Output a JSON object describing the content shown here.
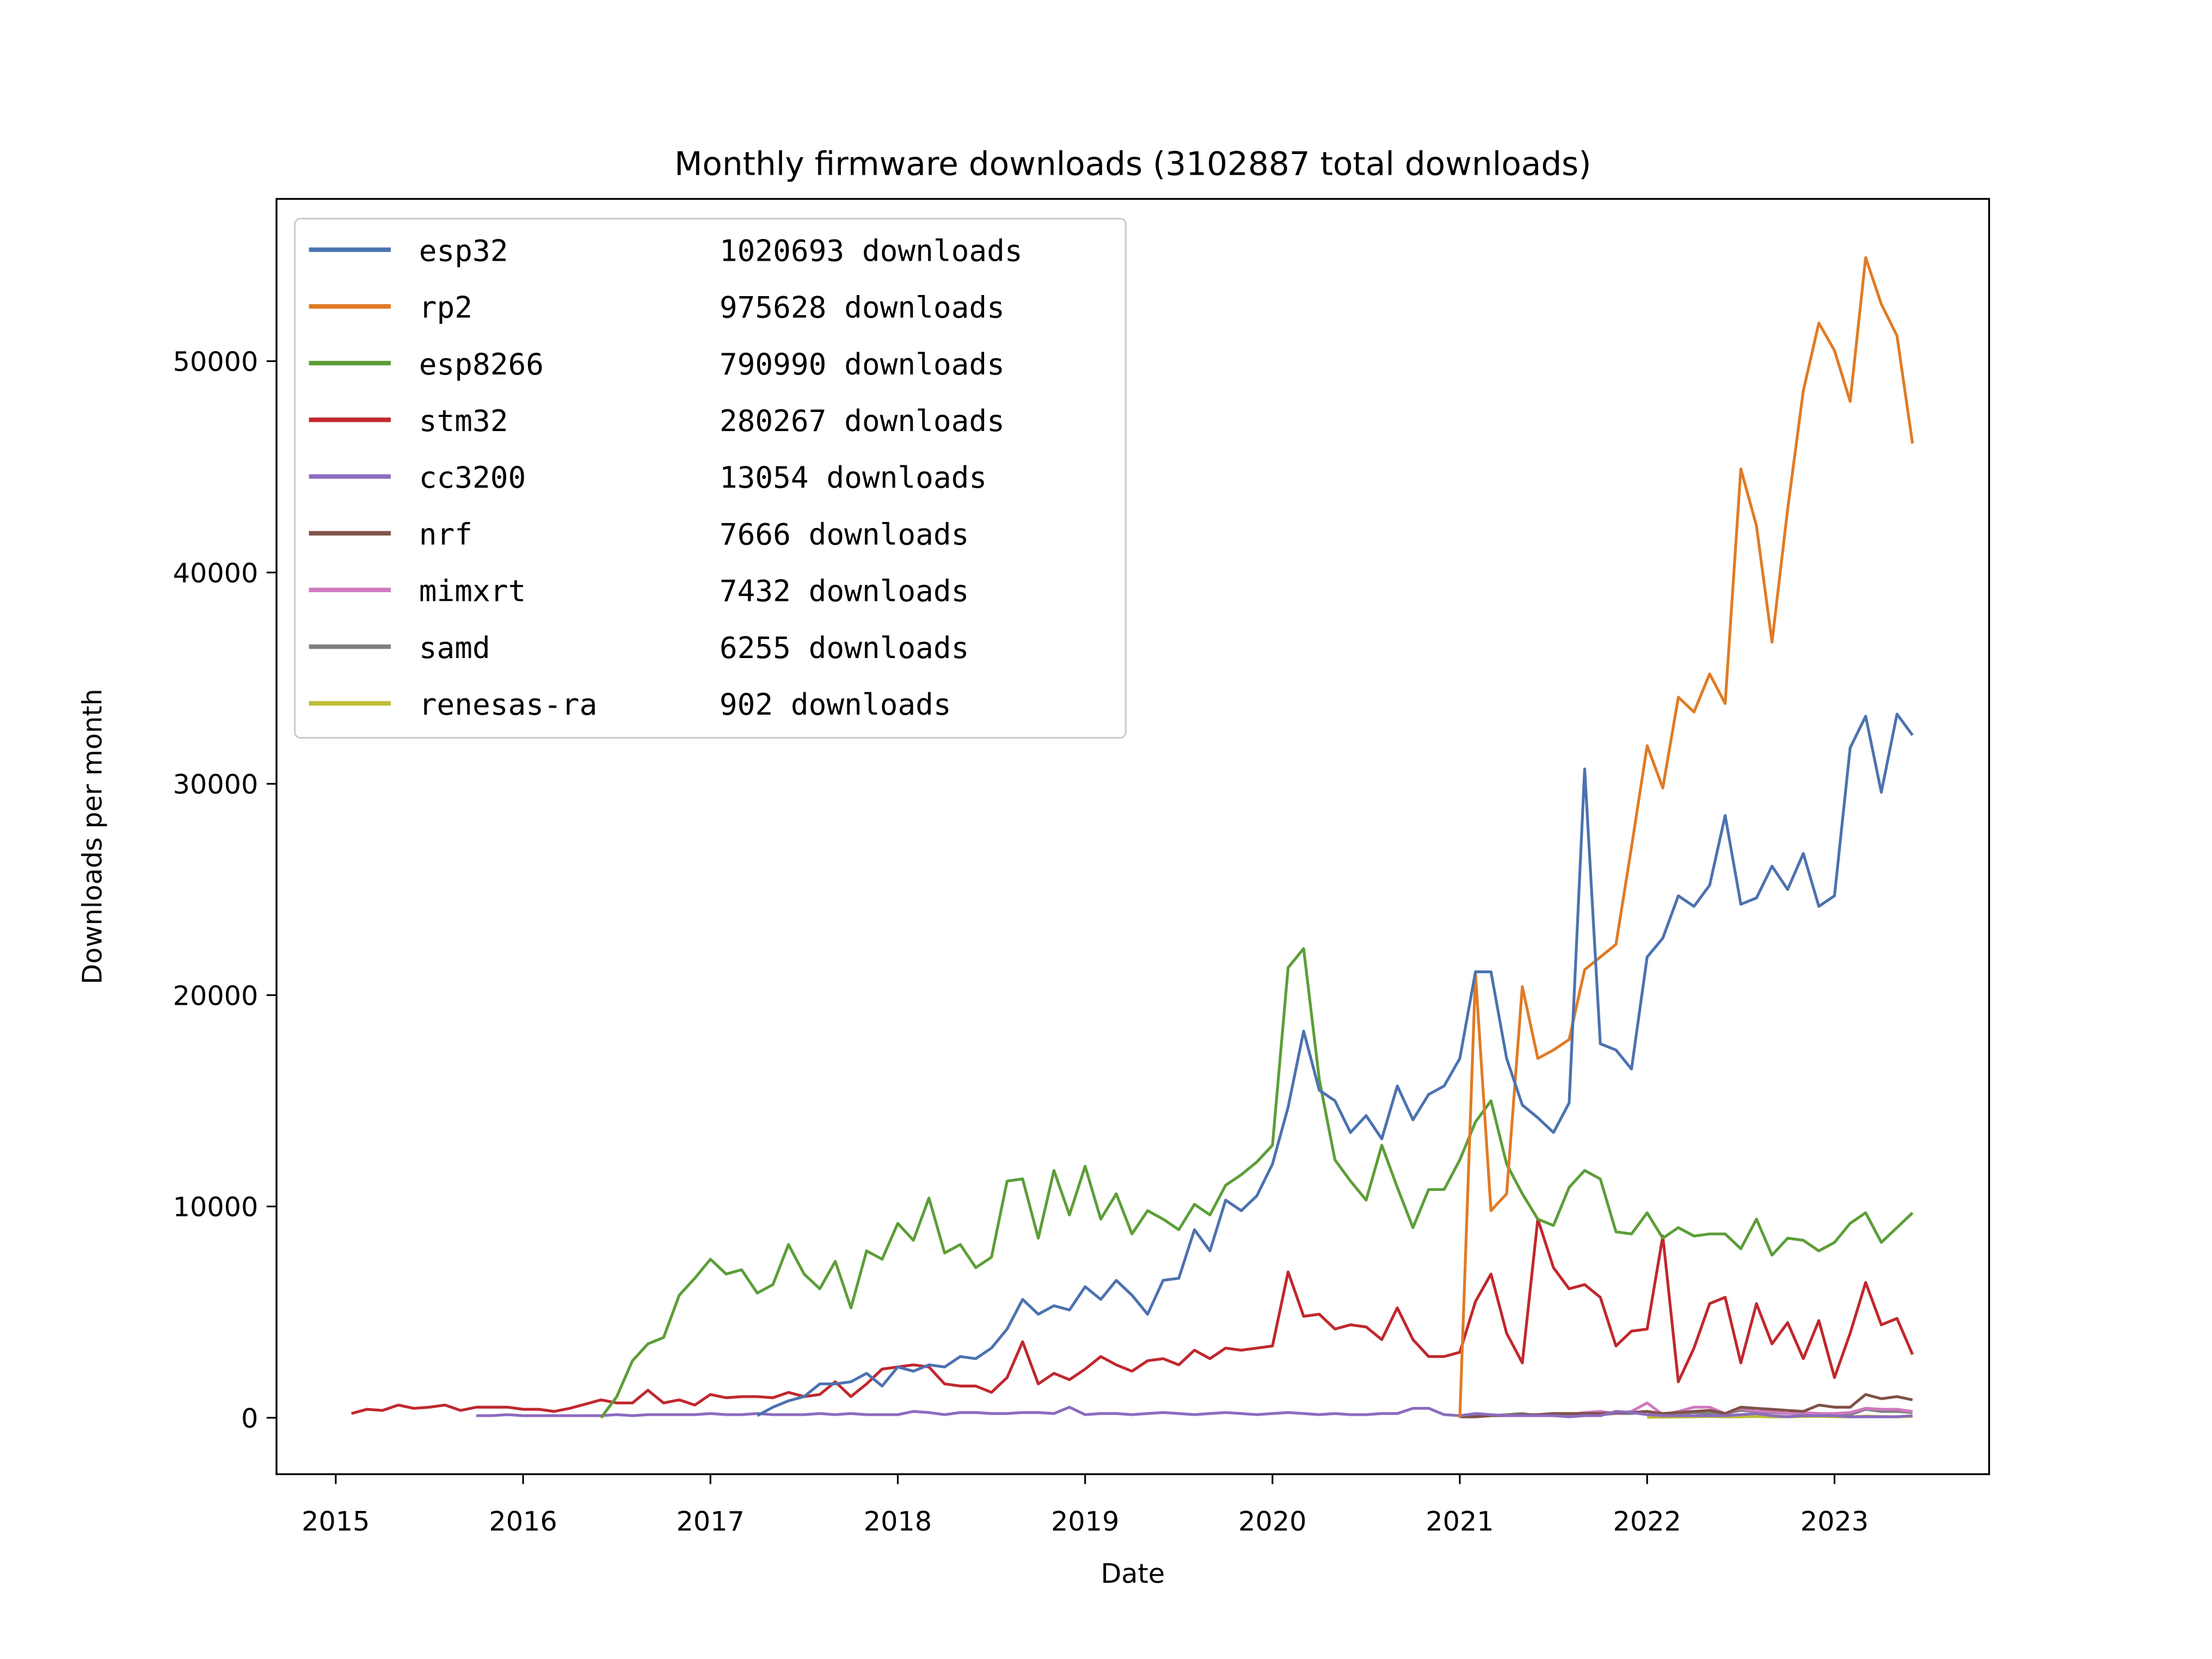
{
  "chart_data": {
    "type": "line",
    "title": "Monthly firmware downloads (3102887 total downloads)",
    "xlabel": "Date",
    "ylabel": "Downloads per month",
    "x_start": "2015-01",
    "xlim": [
      "2014-10",
      "2023-09"
    ],
    "ylim": [
      -2700,
      57700
    ],
    "xticks": [
      "2015",
      "2016",
      "2017",
      "2018",
      "2019",
      "2020",
      "2021",
      "2022",
      "2023"
    ],
    "yticks": [
      0,
      10000,
      20000,
      30000,
      40000,
      50000
    ],
    "ytick_labels": [
      "0",
      "10000",
      "20000",
      "30000",
      "40000",
      "50000"
    ],
    "legend_placement": "top-left",
    "grid": false,
    "series": [
      {
        "name": "esp32",
        "total": "1020693 downloads",
        "color": "#4c72b0",
        "start_month_index": 27,
        "values": [
          100,
          500,
          800,
          1000,
          1600,
          1600,
          1700,
          2100,
          1500,
          2400,
          2200,
          2500,
          2400,
          2900,
          2800,
          3300,
          4200,
          5600,
          4900,
          5300,
          5100,
          6200,
          5600,
          6500,
          5800,
          4900,
          6500,
          6600,
          8900,
          7900,
          10300,
          9800,
          10500,
          12000,
          14700,
          18300,
          15500,
          15000,
          13500,
          14300,
          13200,
          15700,
          14100,
          15300,
          15700,
          17000,
          21100,
          21100,
          17000,
          14800,
          14200,
          13500,
          14900,
          30700,
          17700,
          17400,
          16500,
          21800,
          22700,
          24700,
          24200,
          25200,
          28500,
          24300,
          24600,
          26100,
          25000,
          26700,
          24200,
          24700,
          31700,
          33200,
          29600,
          33300,
          32300
        ]
      },
      {
        "name": "rp2",
        "total": "975628 downloads",
        "color": "#e07b24",
        "start_month_index": 72,
        "values": [
          0,
          21000,
          9800,
          10600,
          20400,
          17000,
          17400,
          17900,
          21200,
          21800,
          22400,
          27000,
          31800,
          29800,
          34100,
          33400,
          35200,
          33800,
          44900,
          42200,
          36700,
          43000,
          48600,
          51800,
          50500,
          48100,
          54900,
          52700,
          51200,
          46100
        ]
      },
      {
        "name": "esp8266",
        "total": "790990 downloads",
        "color": "#5c9e38",
        "start_month_index": 17,
        "values": [
          0,
          1000,
          2700,
          3500,
          3800,
          5800,
          6600,
          7500,
          6800,
          7000,
          5900,
          6300,
          8200,
          6800,
          6100,
          7400,
          5200,
          7900,
          7500,
          9200,
          8400,
          10400,
          7800,
          8200,
          7100,
          7600,
          11200,
          11300,
          8500,
          11700,
          9600,
          11900,
          9400,
          10600,
          8700,
          9800,
          9400,
          8900,
          10100,
          9600,
          11000,
          11500,
          12100,
          12900,
          21300,
          22200,
          16000,
          12200,
          11200,
          10300,
          12900,
          10900,
          9000,
          10800,
          10800,
          12200,
          14000,
          15000,
          12000,
          10600,
          9400,
          9100,
          10900,
          11700,
          11300,
          8800,
          8700,
          9700,
          8500,
          9000,
          8600,
          8700,
          8700,
          8000,
          9400,
          7700,
          8500,
          8400,
          7900,
          8300,
          9200,
          9700,
          8300,
          9000,
          9700
        ]
      },
      {
        "name": "stm32",
        "total": "280267 downloads",
        "color": "#c0282d",
        "start_month_index": 1,
        "values": [
          200,
          400,
          350,
          600,
          450,
          500,
          600,
          350,
          500,
          500,
          500,
          400,
          400,
          300,
          450,
          650,
          850,
          700,
          700,
          1300,
          700,
          850,
          600,
          1100,
          950,
          1000,
          1000,
          950,
          1200,
          1000,
          1100,
          1700,
          1000,
          1600,
          2300,
          2400,
          2500,
          2400,
          1600,
          1500,
          1500,
          1200,
          1900,
          3600,
          1600,
          2100,
          1800,
          2300,
          2900,
          2500,
          2200,
          2700,
          2800,
          2500,
          3200,
          2800,
          3300,
          3200,
          3300,
          3400,
          6900,
          4800,
          4900,
          4200,
          4400,
          4300,
          3700,
          5200,
          3700,
          2900,
          2900,
          3100,
          5500,
          6800,
          4000,
          2600,
          9400,
          7100,
          6100,
          6300,
          5700,
          3400,
          4100,
          4200,
          8600,
          1700,
          3300,
          5400,
          5700,
          2600,
          5400,
          3500,
          4500,
          2800,
          4600,
          1900,
          4000,
          6400,
          4400,
          4700,
          3000
        ]
      },
      {
        "name": "cc3200",
        "total": "13054 downloads",
        "color": "#8c6bbf",
        "start_month_index": 9,
        "values": [
          100,
          100,
          150,
          100,
          100,
          100,
          100,
          100,
          100,
          150,
          100,
          150,
          150,
          150,
          150,
          200,
          150,
          150,
          200,
          150,
          150,
          150,
          200,
          150,
          200,
          150,
          150,
          150,
          300,
          250,
          150,
          250,
          250,
          200,
          200,
          250,
          250,
          200,
          500,
          150,
          200,
          200,
          150,
          200,
          250,
          200,
          150,
          200,
          250,
          200,
          150,
          200,
          250,
          200,
          150,
          200,
          150,
          150,
          200,
          200,
          450,
          450,
          150,
          100,
          200,
          150,
          100,
          100,
          100,
          100,
          50,
          100,
          100,
          300,
          250,
          150,
          100,
          100,
          100,
          100,
          100,
          150,
          200,
          100,
          50,
          100,
          100,
          100,
          50,
          50,
          50,
          50,
          100
        ]
      },
      {
        "name": "nrf",
        "total": "7666 downloads",
        "color": "#7f5248",
        "start_month_index": 72,
        "values": [
          50,
          50,
          100,
          100,
          150,
          150,
          200,
          200,
          200,
          200,
          250,
          250,
          300,
          200,
          250,
          300,
          350,
          200,
          500,
          450,
          400,
          350,
          300,
          600,
          500,
          500,
          1100,
          900,
          1000,
          850
        ]
      },
      {
        "name": "mimxrt",
        "total": "7432 downloads",
        "color": "#d079c0",
        "start_month_index": 72,
        "values": [
          50,
          100,
          100,
          100,
          100,
          150,
          200,
          150,
          250,
          300,
          200,
          300,
          700,
          150,
          300,
          500,
          500,
          200,
          450,
          300,
          300,
          200,
          250,
          200,
          200,
          250,
          450,
          400,
          400,
          300
        ]
      },
      {
        "name": "samd",
        "total": "6255 downloads",
        "color": "#808080",
        "start_month_index": 72,
        "values": [
          50,
          50,
          100,
          150,
          200,
          100,
          150,
          100,
          100,
          150,
          200,
          200,
          300,
          150,
          200,
          250,
          200,
          200,
          350,
          300,
          250,
          200,
          200,
          200,
          150,
          150,
          400,
          300,
          300,
          250
        ]
      },
      {
        "name": "renesas-ra",
        "total": "902 downloads",
        "color": "#bcbd35",
        "start_month_index": 84,
        "values": [
          20,
          30,
          40,
          50,
          60,
          40,
          50,
          60,
          40,
          50,
          60,
          70,
          50,
          40,
          80,
          60,
          50,
          60
        ]
      }
    ]
  }
}
